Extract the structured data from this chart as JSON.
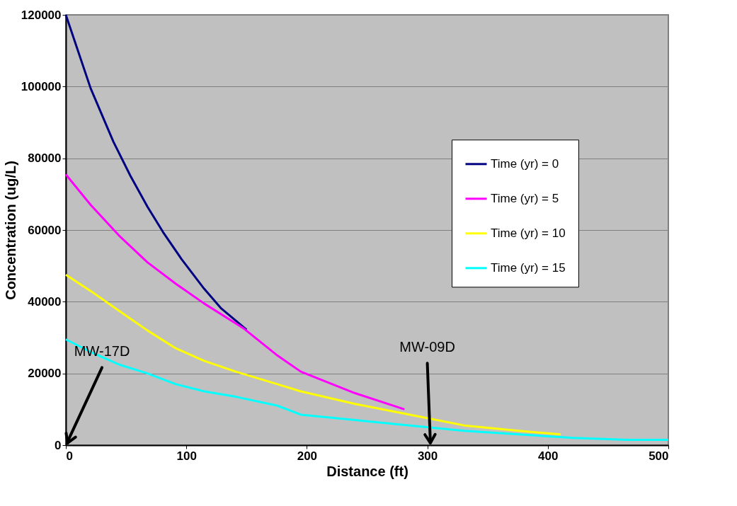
{
  "chart_data": {
    "type": "line",
    "xlabel": "Distance (ft)",
    "ylabel": "Concentration (ug/L)",
    "xlim": [
      0,
      500
    ],
    "xticks": [
      0,
      100,
      200,
      300,
      400,
      500
    ],
    "ylim": [
      0,
      120000
    ],
    "yticks": [
      0,
      20000,
      40000,
      60000,
      80000,
      100000,
      120000
    ],
    "grid": "y",
    "legend": "right",
    "marker": "none",
    "line_style": "solid",
    "series": [
      {
        "name": "Time (yr) = 0",
        "color": "#000080",
        "x": [
          0,
          20.6,
          39.5,
          53.6,
          67.7,
          80.7,
          96,
          114.8,
          129,
          150
        ],
        "values": [
          120000,
          99500,
          84600,
          75100,
          66500,
          59400,
          51900,
          43600,
          38100,
          32200
        ]
      },
      {
        "name": "Time (yr) = 5",
        "color": "#ff00ff",
        "x": [
          0,
          20.6,
          44,
          67.7,
          91.3,
          114.8,
          147.8,
          175.6,
          195,
          240,
          281
        ],
        "values": [
          75500,
          67000,
          58500,
          51000,
          45000,
          39500,
          32500,
          25000,
          20500,
          14500,
          10000
        ]
      },
      {
        "name": "Time (yr) = 10",
        "color": "#ffff00",
        "x": [
          0,
          20.6,
          44,
          67.7,
          91.3,
          114.8,
          141,
          175.6,
          195,
          240,
          285.6,
          330.6,
          375.8,
          410.7
        ],
        "values": [
          47500,
          43000,
          37500,
          32000,
          27000,
          23500,
          20500,
          17000,
          15000,
          11500,
          8500,
          5500,
          4000,
          3000
        ]
      },
      {
        "name": "Time (yr) = 15",
        "color": "#00ffff",
        "x": [
          0,
          20.6,
          44,
          67.7,
          91.3,
          114.8,
          141,
          175.6,
          195,
          240,
          285.6,
          330.6,
          375.8,
          421,
          466,
          500
        ],
        "values": [
          29500,
          26000,
          22500,
          20000,
          17000,
          15000,
          13500,
          11000,
          8500,
          7000,
          5500,
          4000,
          3000,
          2000,
          1500,
          1500
        ]
      }
    ],
    "annotations": [
      "MW-17D",
      "MW-09D"
    ]
  }
}
